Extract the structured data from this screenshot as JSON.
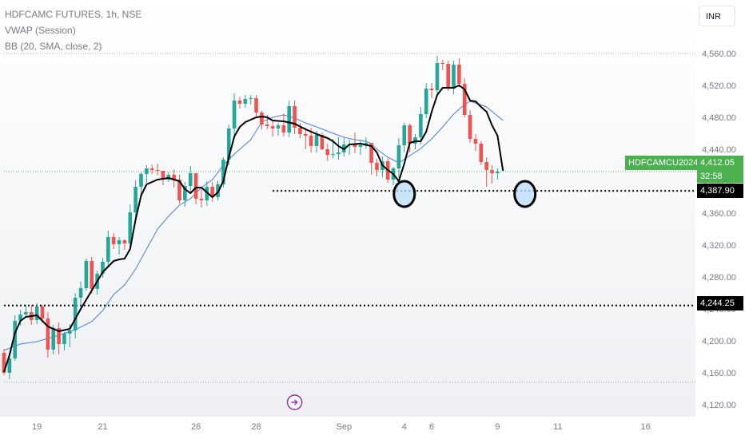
{
  "header": {
    "title": "HDFCAMC FUTURES, 1h, NSE",
    "indicator_vwap": "VWAP (Session)",
    "indicator_bb": "BB (20, SMA, close, 2)",
    "currency": "INR"
  },
  "tags": {
    "symbol": "HDFCAMCU2024",
    "last_price": "4,412.05",
    "countdown": "32:58",
    "level_support": "4,387.90",
    "level_lower": "4,244.25"
  },
  "colors": {
    "up": "#26a69a",
    "down": "#ef5350",
    "vwap": "#000000",
    "bb_basis": "#4a7fe0",
    "last_price": "#4caf50",
    "highlight_fill": "#bbdefb",
    "marker": "#9c27b0"
  },
  "chart_data": {
    "type": "candlestick",
    "title": "HDFCAMC FUTURES, 1h, NSE",
    "y_range": [
      4100,
      4580
    ],
    "y_ticks": [
      4120,
      4160,
      4200,
      4240,
      4280,
      4320,
      4360,
      4400,
      4440,
      4480,
      4520,
      4560
    ],
    "y_tick_labels": [
      "4,120.00",
      "4,160.00",
      "4,200.00",
      "4,240.00",
      "4,280.00",
      "4,320.00",
      "4,360.00",
      "4,400.00",
      "4,440.00",
      "4,480.00",
      "4,520.00",
      "4,560.00"
    ],
    "x_ticks": [
      {
        "label": "19",
        "bar": 6
      },
      {
        "label": "21",
        "bar": 18
      },
      {
        "label": "26",
        "bar": 35
      },
      {
        "label": "28",
        "bar": 46
      },
      {
        "label": "Sep",
        "bar": 62
      },
      {
        "label": "4",
        "bar": 73
      },
      {
        "label": "6",
        "bar": 78
      },
      {
        "label": "9",
        "bar": 90
      },
      {
        "label": "11",
        "bar": 101
      },
      {
        "label": "16",
        "bar": 117
      }
    ],
    "bar_count": 124,
    "candles": [
      [
        4185,
        4160,
        4157,
        4190
      ],
      [
        4160,
        4178,
        4152,
        4181
      ],
      [
        4178,
        4225,
        4175,
        4232
      ],
      [
        4225,
        4233,
        4219,
        4239
      ],
      [
        4233,
        4236,
        4229,
        4245
      ],
      [
        4236,
        4226,
        4220,
        4245
      ],
      [
        4226,
        4243,
        4221,
        4247
      ],
      [
        4243,
        4228,
        4223,
        4245
      ],
      [
        4228,
        4189,
        4179,
        4236
      ],
      [
        4189,
        4216,
        4183,
        4220
      ],
      [
        4216,
        4196,
        4183,
        4223
      ],
      [
        4196,
        4209,
        4188,
        4211
      ],
      [
        4209,
        4213,
        4192,
        4221
      ],
      [
        4213,
        4254,
        4203,
        4260
      ],
      [
        4254,
        4266,
        4244,
        4274
      ],
      [
        4266,
        4300,
        4263,
        4303
      ],
      [
        4300,
        4265,
        4259,
        4305
      ],
      [
        4265,
        4284,
        4258,
        4288
      ],
      [
        4284,
        4299,
        4279,
        4304
      ],
      [
        4299,
        4330,
        4292,
        4338
      ],
      [
        4330,
        4321,
        4315,
        4335
      ],
      [
        4321,
        4326,
        4308,
        4330
      ],
      [
        4326,
        4322,
        4314,
        4327
      ],
      [
        4322,
        4361,
        4316,
        4371
      ],
      [
        4361,
        4393,
        4355,
        4401
      ],
      [
        4393,
        4409,
        4384,
        4411
      ],
      [
        4409,
        4416,
        4398,
        4420
      ],
      [
        4416,
        4414,
        4409,
        4421
      ],
      [
        4414,
        4413,
        4407,
        4422
      ],
      [
        4413,
        4402,
        4395,
        4413
      ],
      [
        4402,
        4408,
        4399,
        4411
      ],
      [
        4408,
        4402,
        4392,
        4415
      ],
      [
        4402,
        4376,
        4372,
        4408
      ],
      [
        4376,
        4394,
        4368,
        4399
      ],
      [
        4394,
        4410,
        4387,
        4419
      ],
      [
        4410,
        4378,
        4371,
        4410
      ],
      [
        4378,
        4376,
        4367,
        4390
      ],
      [
        4376,
        4393,
        4369,
        4400
      ],
      [
        4393,
        4380,
        4374,
        4399
      ],
      [
        4380,
        4396,
        4376,
        4401
      ],
      [
        4396,
        4427,
        4392,
        4430
      ],
      [
        4427,
        4466,
        4420,
        4471
      ],
      [
        4466,
        4501,
        4457,
        4510
      ],
      [
        4501,
        4497,
        4491,
        4506
      ],
      [
        4497,
        4503,
        4492,
        4508
      ],
      [
        4503,
        4504,
        4496,
        4508
      ],
      [
        4504,
        4486,
        4479,
        4508
      ],
      [
        4486,
        4471,
        4465,
        4488
      ],
      [
        4471,
        4469,
        4465,
        4483
      ],
      [
        4469,
        4466,
        4456,
        4475
      ],
      [
        4466,
        4470,
        4457,
        4473
      ],
      [
        4470,
        4461,
        4456,
        4485
      ],
      [
        4461,
        4494,
        4455,
        4501
      ],
      [
        4494,
        4467,
        4459,
        4501
      ],
      [
        4467,
        4459,
        4454,
        4473
      ],
      [
        4459,
        4457,
        4440,
        4467
      ],
      [
        4457,
        4444,
        4436,
        4467
      ],
      [
        4444,
        4458,
        4436,
        4463
      ],
      [
        4458,
        4440,
        4439,
        4461
      ],
      [
        4440,
        4433,
        4425,
        4447
      ],
      [
        4433,
        4434,
        4429,
        4453
      ],
      [
        4434,
        4436,
        4427,
        4455
      ],
      [
        4436,
        4446,
        4431,
        4454
      ],
      [
        4446,
        4446,
        4433,
        4452
      ],
      [
        4446,
        4443,
        4435,
        4461
      ],
      [
        4443,
        4445,
        4433,
        4452
      ],
      [
        4445,
        4448,
        4441,
        4455
      ],
      [
        4448,
        4423,
        4408,
        4448
      ],
      [
        4423,
        4414,
        4406,
        4428
      ],
      [
        4414,
        4425,
        4405,
        4431
      ],
      [
        4425,
        4402,
        4398,
        4429
      ],
      [
        4402,
        4416,
        4395,
        4418
      ],
      [
        4416,
        4445,
        4404,
        4454
      ],
      [
        4445,
        4470,
        4436,
        4473
      ],
      [
        4470,
        4447,
        4436,
        4472
      ],
      [
        4447,
        4455,
        4440,
        4459
      ],
      [
        4455,
        4484,
        4446,
        4493
      ],
      [
        4484,
        4516,
        4479,
        4523
      ],
      [
        4516,
        4514,
        4504,
        4523
      ],
      [
        4514,
        4548,
        4510,
        4557
      ],
      [
        4548,
        4547,
        4539,
        4552
      ],
      [
        4547,
        4516,
        4513,
        4551
      ],
      [
        4516,
        4546,
        4509,
        4551
      ],
      [
        4546,
        4522,
        4518,
        4554
      ],
      [
        4522,
        4483,
        4480,
        4529
      ],
      [
        4483,
        4453,
        4448,
        4489
      ],
      [
        4453,
        4447,
        4438,
        4459
      ],
      [
        4447,
        4424,
        4420,
        4450
      ],
      [
        4424,
        4414,
        4393,
        4430
      ],
      [
        4414,
        4410,
        4397,
        4420
      ],
      [
        4410,
        4412,
        4402,
        4416
      ]
    ],
    "vwap": [
      [
        0,
        4161
      ],
      [
        1,
        4182
      ],
      [
        2,
        4210
      ],
      [
        3,
        4225
      ],
      [
        4,
        4230
      ],
      [
        6,
        4232
      ],
      [
        8,
        4218
      ],
      [
        10,
        4212
      ],
      [
        12,
        4215
      ],
      [
        14,
        4240
      ],
      [
        16,
        4263
      ],
      [
        18,
        4286
      ],
      [
        20,
        4300
      ],
      [
        21,
        4302
      ],
      [
        22,
        4303
      ],
      [
        23,
        4315
      ],
      [
        24,
        4352
      ],
      [
        25,
        4382
      ],
      [
        26,
        4396
      ],
      [
        28,
        4402
      ],
      [
        30,
        4404
      ],
      [
        32,
        4400
      ],
      [
        33,
        4390
      ],
      [
        34,
        4385
      ],
      [
        35,
        4392
      ],
      [
        36,
        4392
      ],
      [
        37,
        4386
      ],
      [
        38,
        4380
      ],
      [
        39,
        4386
      ],
      [
        40,
        4400
      ],
      [
        41,
        4430
      ],
      [
        42,
        4456
      ],
      [
        43,
        4468
      ],
      [
        44,
        4474
      ],
      [
        46,
        4480
      ],
      [
        47,
        4481
      ],
      [
        48,
        4480
      ],
      [
        49,
        4476
      ],
      [
        51,
        4475
      ],
      [
        53,
        4472
      ],
      [
        55,
        4465
      ],
      [
        57,
        4459
      ],
      [
        59,
        4454
      ],
      [
        60,
        4450
      ],
      [
        61,
        4444
      ],
      [
        62,
        4440
      ],
      [
        63,
        4446
      ],
      [
        65,
        4447
      ],
      [
        67,
        4444
      ],
      [
        68,
        4436
      ],
      [
        69,
        4420
      ],
      [
        70,
        4414
      ],
      [
        71,
        4409
      ],
      [
        72,
        4400
      ],
      [
        73,
        4422
      ],
      [
        74,
        4448
      ],
      [
        75,
        4450
      ],
      [
        76,
        4450
      ],
      [
        77,
        4462
      ],
      [
        78,
        4487
      ],
      [
        79,
        4508
      ],
      [
        80,
        4517
      ],
      [
        82,
        4517
      ],
      [
        83,
        4520
      ],
      [
        84,
        4515
      ],
      [
        85,
        4501
      ],
      [
        86,
        4500
      ],
      [
        87,
        4493
      ],
      [
        88,
        4487
      ],
      [
        89,
        4470
      ],
      [
        90,
        4457
      ],
      [
        91,
        4413
      ]
    ],
    "bb_basis": [
      [
        0,
        4188
      ],
      [
        3,
        4196
      ],
      [
        6,
        4199
      ],
      [
        10,
        4207
      ],
      [
        13,
        4214
      ],
      [
        16,
        4224
      ],
      [
        18,
        4238
      ],
      [
        20,
        4258
      ],
      [
        22,
        4270
      ],
      [
        24,
        4290
      ],
      [
        26,
        4315
      ],
      [
        28,
        4340
      ],
      [
        30,
        4356
      ],
      [
        32,
        4370
      ],
      [
        34,
        4378
      ],
      [
        36,
        4392
      ],
      [
        38,
        4402
      ],
      [
        40,
        4420
      ],
      [
        42,
        4434
      ],
      [
        45,
        4452
      ],
      [
        47,
        4474
      ],
      [
        49,
        4480
      ],
      [
        51,
        4483
      ],
      [
        53,
        4479
      ],
      [
        55,
        4473
      ],
      [
        57,
        4468
      ],
      [
        60,
        4460
      ],
      [
        62,
        4455
      ],
      [
        64,
        4452
      ],
      [
        66,
        4450
      ],
      [
        67,
        4447
      ],
      [
        68,
        4440
      ],
      [
        70,
        4430
      ],
      [
        72,
        4423
      ],
      [
        74,
        4432
      ],
      [
        76,
        4441
      ],
      [
        78,
        4453
      ],
      [
        80,
        4468
      ],
      [
        82,
        4484
      ],
      [
        84,
        4496
      ],
      [
        85,
        4500
      ],
      [
        86,
        4498
      ],
      [
        88,
        4493
      ],
      [
        91,
        4476
      ]
    ],
    "horizontal_levels": [
      {
        "price": 4387.9,
        "style": "dotted-bold",
        "from_bar": 49
      },
      {
        "price": 4244.25,
        "style": "dotted-bold",
        "from_bar": 0
      },
      {
        "price": 4412.05,
        "style": "dotted-green",
        "from_bar": 0
      },
      {
        "price": 4560,
        "style": "dotted-grey",
        "from_bar": 0
      },
      {
        "price": 4148,
        "style": "dotted-grey",
        "from_bar": 0
      }
    ],
    "highlights": [
      {
        "bar": 73,
        "price": 4384
      },
      {
        "bar": 95,
        "price": 4384
      }
    ],
    "event_marker_bar": 53
  }
}
